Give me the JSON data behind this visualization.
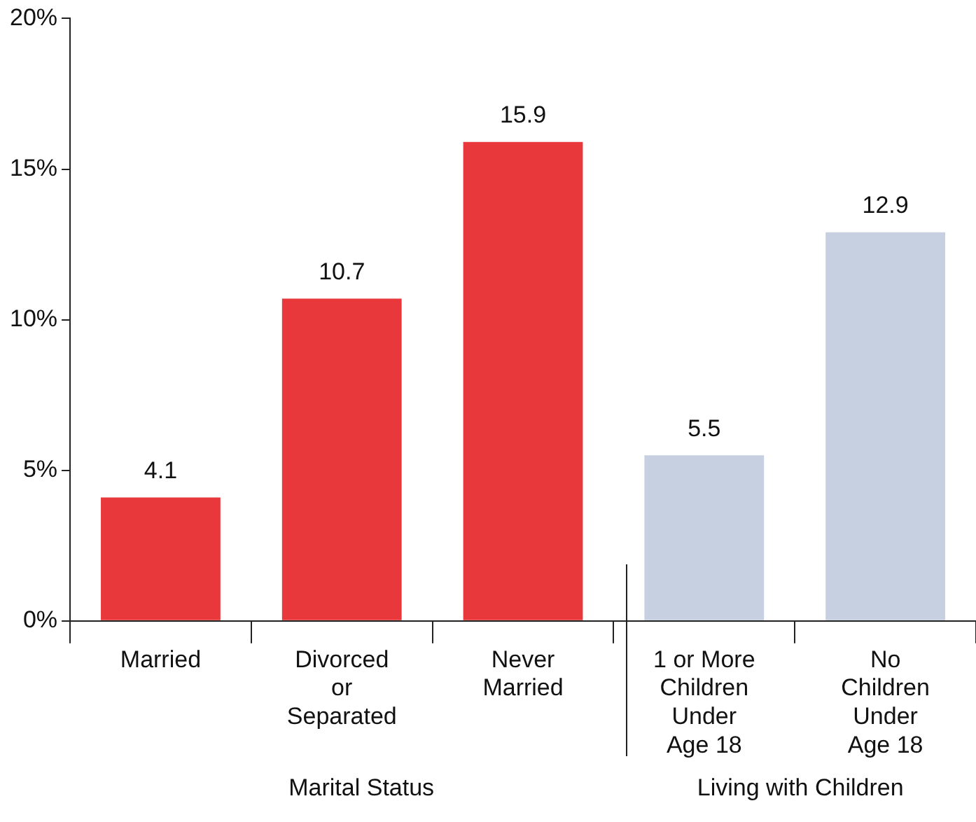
{
  "chart_data": {
    "type": "bar",
    "categories": [
      "Married",
      "Divorced\nor\nSeparated",
      "Never\nMarried",
      "1 or More\nChildren\nUnder\nAge 18",
      "No\nChildren\nUnder\nAge 18"
    ],
    "values": [
      4.1,
      10.7,
      15.9,
      5.5,
      12.9
    ],
    "colors": [
      "#e8383b",
      "#e8383b",
      "#e8383b",
      "#c6d0e1",
      "#c6d0e1"
    ],
    "ylim": [
      0,
      20
    ],
    "yticks": [
      {
        "value": 0,
        "label": "0%"
      },
      {
        "value": 5,
        "label": "5%"
      },
      {
        "value": 10,
        "label": "10%"
      },
      {
        "value": 15,
        "label": "15%"
      },
      {
        "value": 20,
        "label": "20%"
      }
    ],
    "data_labels": true,
    "grid": false,
    "legend": false,
    "annotations": [
      "Marital Status",
      "Living with Children"
    ]
  }
}
